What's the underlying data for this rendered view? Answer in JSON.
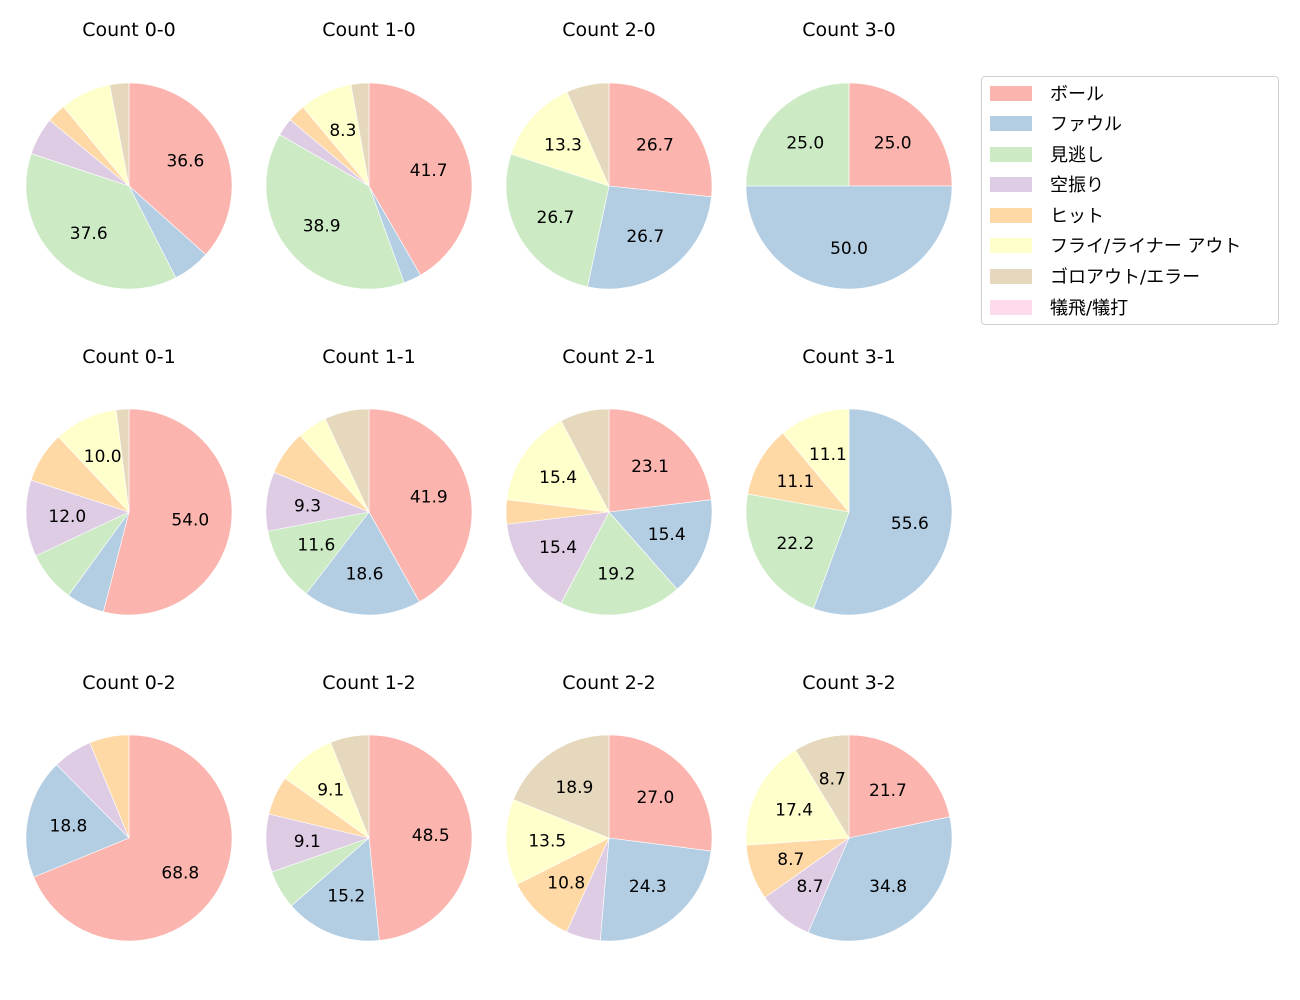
{
  "chart_data": {
    "type": "pie",
    "start_angle": 90,
    "direction": "clockwise",
    "label_format": "percent, 1 decimal, labels hidden for small slices",
    "categories": [
      "ボール",
      "ファウル",
      "見逃し",
      "空振り",
      "ヒット",
      "フライ/ライナー アウト",
      "ゴロアウト/エラー",
      "犠飛/犠打"
    ],
    "colors": [
      "#fbb4ae",
      "#b3cde3",
      "#ccebc5",
      "#decbe4",
      "#fed9a6",
      "#ffffcc",
      "#e5d8bd",
      "#fddaec"
    ],
    "charts": [
      {
        "title": "Count 0-0",
        "values": [
          36.6,
          5.9,
          37.6,
          5.9,
          3.0,
          8.0,
          3.0,
          0
        ],
        "labels": [
          "36.6",
          "",
          "37.6",
          "",
          "",
          "",
          "",
          ""
        ]
      },
      {
        "title": "Count 1-0",
        "values": [
          41.7,
          2.8,
          38.9,
          2.8,
          2.8,
          8.3,
          2.8,
          0
        ],
        "labels": [
          "41.7",
          "",
          "38.9",
          "",
          "",
          "8.3",
          "",
          ""
        ]
      },
      {
        "title": "Count 2-0",
        "values": [
          26.7,
          26.7,
          26.7,
          0,
          0,
          13.3,
          6.7,
          0
        ],
        "labels": [
          "26.7",
          "26.7",
          "26.7",
          "",
          "",
          "13.3",
          "",
          ""
        ]
      },
      {
        "title": "Count 3-0",
        "values": [
          25.0,
          50.0,
          25.0,
          0,
          0,
          0,
          0,
          0
        ],
        "labels": [
          "25.0",
          "50.0",
          "25.0",
          "",
          "",
          "",
          "",
          ""
        ]
      },
      {
        "title": "Count 0-1",
        "values": [
          54.0,
          6.0,
          8.0,
          12.0,
          8.0,
          10.0,
          2.0,
          0
        ],
        "labels": [
          "54.0",
          "",
          "",
          "12.0",
          "",
          "10.0",
          "",
          ""
        ]
      },
      {
        "title": "Count 1-1",
        "values": [
          41.9,
          18.6,
          11.6,
          9.3,
          7.0,
          4.7,
          7.0,
          0
        ],
        "labels": [
          "41.9",
          "18.6",
          "11.6",
          "9.3",
          "",
          "",
          "",
          ""
        ]
      },
      {
        "title": "Count 2-1",
        "values": [
          23.1,
          15.4,
          19.2,
          15.4,
          3.8,
          15.4,
          7.7,
          0
        ],
        "labels": [
          "23.1",
          "15.4",
          "19.2",
          "15.4",
          "",
          "15.4",
          "",
          ""
        ]
      },
      {
        "title": "Count 3-1",
        "values": [
          0,
          55.6,
          22.2,
          0,
          11.1,
          11.1,
          0,
          0
        ],
        "labels": [
          "",
          "55.6",
          "22.2",
          "",
          "11.1",
          "11.1",
          "",
          ""
        ]
      },
      {
        "title": "Count 0-2",
        "values": [
          68.8,
          18.8,
          0,
          6.2,
          6.2,
          0,
          0,
          0
        ],
        "labels": [
          "68.8",
          "18.8",
          "",
          "",
          "",
          "",
          "",
          ""
        ]
      },
      {
        "title": "Count 1-2",
        "values": [
          48.5,
          15.2,
          6.1,
          9.1,
          6.1,
          9.1,
          6.1,
          0
        ],
        "labels": [
          "48.5",
          "15.2",
          "",
          "9.1",
          "",
          "9.1",
          "",
          ""
        ]
      },
      {
        "title": "Count 2-2",
        "values": [
          27.0,
          24.3,
          0,
          5.4,
          10.8,
          13.5,
          18.9,
          0
        ],
        "labels": [
          "27.0",
          "24.3",
          "",
          "",
          "10.8",
          "13.5",
          "18.9",
          ""
        ]
      },
      {
        "title": "Count 3-2",
        "values": [
          21.7,
          34.8,
          0,
          8.7,
          8.7,
          17.4,
          8.7,
          0
        ],
        "labels": [
          "21.7",
          "34.8",
          "",
          "8.7",
          "8.7",
          "17.4",
          "8.7",
          ""
        ]
      }
    ],
    "legend_position": "upper right, outside grid"
  },
  "legend": {
    "items": [
      {
        "label": "ボール",
        "color": "#fbb4ae"
      },
      {
        "label": "ファウル",
        "color": "#b3cde3"
      },
      {
        "label": "見逃し",
        "color": "#ccebc5"
      },
      {
        "label": "空振り",
        "color": "#decbe4"
      },
      {
        "label": "ヒット",
        "color": "#fed9a6"
      },
      {
        "label": "フライ/ライナー アウト",
        "color": "#ffffcc"
      },
      {
        "label": "ゴロアウト/エラー",
        "color": "#e5d8bd"
      },
      {
        "label": "犠飛/犠打",
        "color": "#fddaec"
      }
    ]
  }
}
